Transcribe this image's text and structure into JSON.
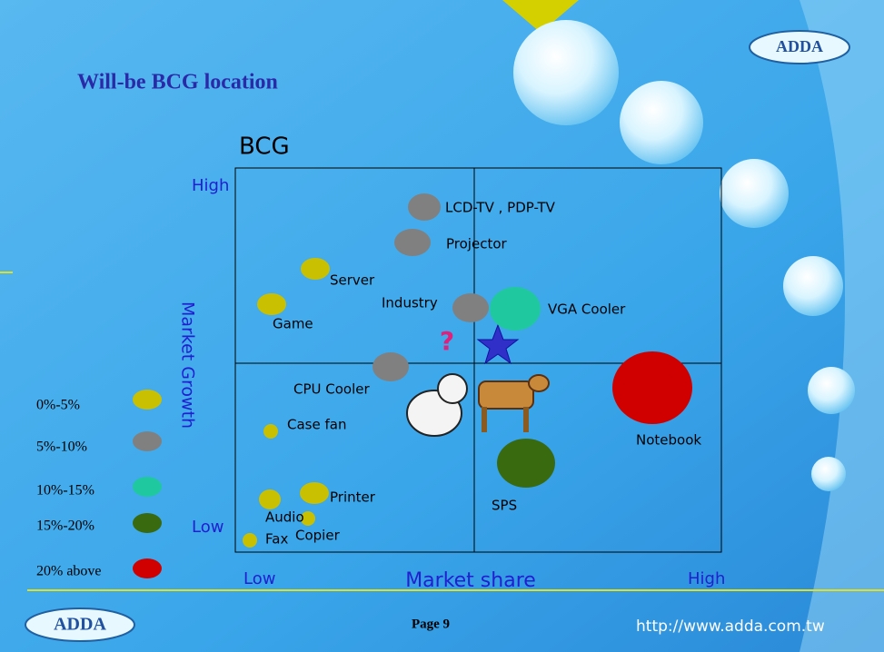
{
  "header": {
    "title": "Will-be BCG location",
    "logo": "ADDA"
  },
  "matrix": {
    "title": "BCG",
    "y_axis": {
      "label": "Market Growth",
      "high": "High",
      "low": "Low"
    },
    "x_axis": {
      "label": "Market share",
      "low": "Low",
      "high": "High"
    },
    "mark": "?"
  },
  "bubbles": [
    {
      "label": "LCD-TV , PDP-TV",
      "color": "#808080"
    },
    {
      "label": "Projector",
      "color": "#808080"
    },
    {
      "label": "Server",
      "color": "#c8c000"
    },
    {
      "label": "Game",
      "color": "#c8c000"
    },
    {
      "label": "Industry",
      "color": "#808080"
    },
    {
      "label": "VGA Cooler",
      "color": "#20c8a0"
    },
    {
      "label": "CPU Cooler",
      "color": "#808080"
    },
    {
      "label": "Case fan",
      "color": "#c8c000"
    },
    {
      "label": "Notebook",
      "color": "#d00000"
    },
    {
      "label": "SPS",
      "color": "#3a6a10"
    },
    {
      "label": "Printer",
      "color": "#c8c000"
    },
    {
      "label": "Audio",
      "color": "#c8c000"
    },
    {
      "label": "Copier",
      "color": "#c8c000"
    },
    {
      "label": "Fax",
      "color": "#c8c000"
    }
  ],
  "legend": [
    {
      "label": "0%-5%",
      "color": "#c8c000"
    },
    {
      "label": "5%-10%",
      "color": "#808080"
    },
    {
      "label": "10%-15%",
      "color": "#20c8a0"
    },
    {
      "label": "15%-20%",
      "color": "#3a6a10"
    },
    {
      "label": "20% above",
      "color": "#d00000"
    }
  ],
  "footer": {
    "page": "Page 9",
    "url": "http://www.adda.com.tw",
    "logo": "ADDA"
  }
}
